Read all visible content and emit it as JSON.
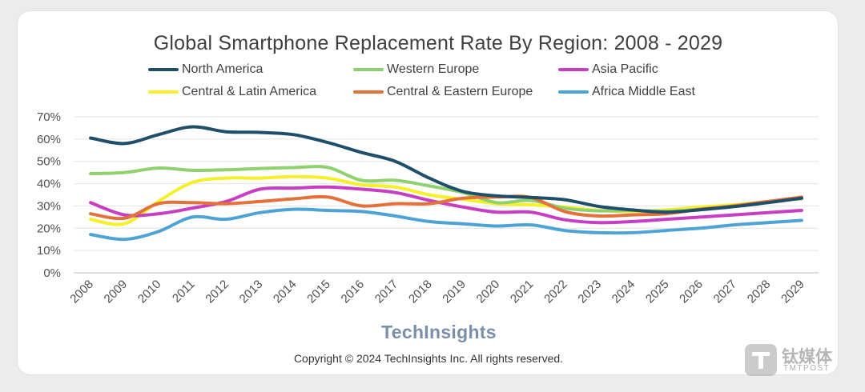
{
  "chart_data": {
    "type": "line",
    "title": "Global Smartphone Replacement Rate By Region: 2008 - 2029",
    "xlabel": "",
    "ylabel": "",
    "x": [
      "2008",
      "2009",
      "2010",
      "2011",
      "2012",
      "2013",
      "2014",
      "2015",
      "2016",
      "2017",
      "2018",
      "2019",
      "2020",
      "2021",
      "2022",
      "2023",
      "2024",
      "2025",
      "2026",
      "2027",
      "2028",
      "2029"
    ],
    "ylim": [
      0,
      70
    ],
    "yticks": [
      "0%",
      "10%",
      "20%",
      "30%",
      "40%",
      "50%",
      "60%",
      "70%"
    ],
    "grid": true,
    "legend_position": "top",
    "series": [
      {
        "name": "North America",
        "color": "#1f4e6b",
        "values": [
          60.5,
          58,
          62,
          65.5,
          63.3,
          63,
          62,
          58.5,
          54,
          50,
          42.5,
          36.5,
          34.5,
          33.8,
          32.8,
          29.8,
          28.2,
          27.2,
          28.3,
          29.7,
          31.5,
          33.5
        ]
      },
      {
        "name": "Western Europe",
        "color": "#8fd16f",
        "values": [
          44.5,
          45,
          47,
          46,
          46.2,
          46.8,
          47.2,
          47.3,
          41.5,
          41.5,
          39,
          36,
          31.5,
          32.5,
          29,
          27.8,
          28,
          27.6,
          28.5,
          30,
          32,
          33.2
        ]
      },
      {
        "name": "Asia Pacific",
        "color": "#c83ec2",
        "values": [
          31.5,
          26,
          26.5,
          29,
          32,
          37.5,
          38,
          38.5,
          37.5,
          36,
          32.5,
          29.5,
          27.2,
          27.2,
          23.8,
          22.5,
          23,
          24,
          25,
          26,
          27,
          28
        ]
      },
      {
        "name": "Central & Latin America",
        "color": "#f4f02a",
        "values": [
          24,
          22,
          32,
          40.5,
          42.5,
          42.5,
          43.2,
          42.5,
          39.5,
          38.5,
          35,
          33,
          31,
          30.5,
          29.5,
          28,
          27.5,
          28.2,
          29.5,
          30.5,
          32,
          33.5
        ]
      },
      {
        "name": "Central & Eastern Europe",
        "color": "#e4703a",
        "values": [
          26.5,
          24.5,
          31,
          31.5,
          31,
          32,
          33.2,
          34,
          30,
          31,
          31,
          33.5,
          34,
          33.8,
          27.5,
          25.5,
          26,
          26.5,
          28.5,
          30,
          32,
          34
        ]
      },
      {
        "name": "Africa Middle East",
        "color": "#4ea3d6",
        "values": [
          17.2,
          15,
          18.5,
          25,
          24,
          27,
          28.5,
          28,
          27.5,
          25.5,
          23,
          22,
          21,
          21.5,
          19,
          18,
          18,
          19,
          20,
          21.5,
          22.5,
          23.5
        ]
      }
    ]
  },
  "brand": "TechInsights",
  "copyright": "Copyright © 2024 TechInsights Inc.  All rights reserved.",
  "watermark": {
    "cn": "钛媒体",
    "en": "TMTPOST"
  }
}
